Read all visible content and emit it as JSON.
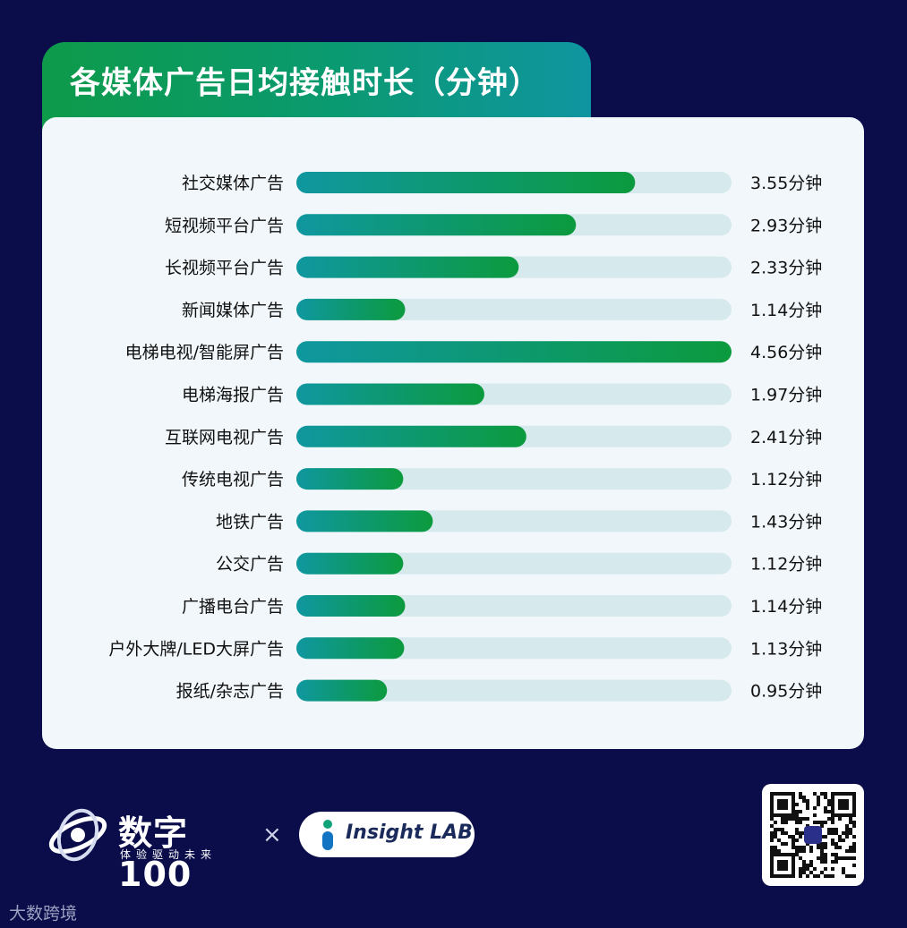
{
  "title": "各媒体广告日均接触时长（分钟）",
  "chart_data": {
    "type": "bar",
    "orientation": "horizontal",
    "title": "各媒体广告日均接触时长（分钟）",
    "xlim": [
      0,
      4.56
    ],
    "value_suffix": "分钟",
    "categories": [
      "社交媒体广告",
      "短视频平台广告",
      "长视频平台广告",
      "新闻媒体广告",
      "电梯电视/智能屏广告",
      "电梯海报广告",
      "互联网电视广告",
      "传统电视广告",
      "地铁广告",
      "公交广告",
      "广播电台广告",
      "户外大牌/LED大屏广告",
      "报纸/杂志广告"
    ],
    "values": [
      3.55,
      2.93,
      2.33,
      1.14,
      4.56,
      1.97,
      2.41,
      1.12,
      1.43,
      1.12,
      1.14,
      1.13,
      0.95
    ],
    "value_labels": [
      "3.55分钟",
      "2.93分钟",
      "2.33分钟",
      "1.14分钟",
      "4.56分钟",
      "1.97分钟",
      "2.41分钟",
      "1.12分钟",
      "1.43分钟",
      "1.12分钟",
      "1.14分钟",
      "1.13分钟",
      "0.95分钟"
    ],
    "colors": {
      "bar_start": "#0f97a0",
      "bar_end": "#0c9a3e",
      "track": "#d6e9ec"
    }
  },
  "footer": {
    "brand_name": "数字100",
    "brand_tagline": "体验驱动未来",
    "times": "×",
    "partner": "Insight LAB",
    "watermark": "大数跨境"
  }
}
